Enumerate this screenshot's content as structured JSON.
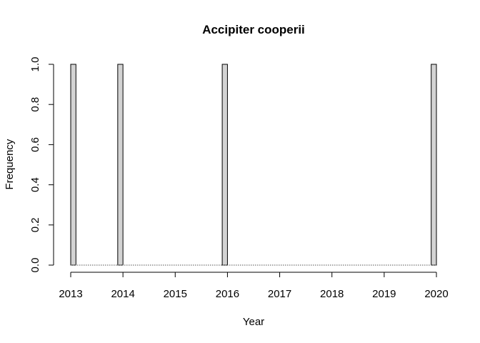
{
  "chart_data": {
    "type": "bar",
    "title": "Accipiter cooperii",
    "xlabel": "Year",
    "ylabel": "Frequency",
    "x_ticks": [
      "2013",
      "2014",
      "2015",
      "2016",
      "2017",
      "2018",
      "2019",
      "2020"
    ],
    "y_ticks": [
      "0.0",
      "0.2",
      "0.4",
      "0.6",
      "0.8",
      "1.0"
    ],
    "xlim": [
      2013,
      2020
    ],
    "ylim": [
      0,
      1
    ],
    "bin_width_years": 0.1,
    "bars": [
      {
        "x_start": 2013.0,
        "x_end": 2013.1,
        "value": 1
      },
      {
        "x_start": 2013.9,
        "x_end": 2014.0,
        "value": 1
      },
      {
        "x_start": 2015.9,
        "x_end": 2016.0,
        "value": 1
      },
      {
        "x_start": 2019.9,
        "x_end": 2020.0,
        "value": 1
      }
    ],
    "bar_fill": "#d3d3d3",
    "bar_stroke": "#000000",
    "grid": false,
    "legend": "none"
  }
}
